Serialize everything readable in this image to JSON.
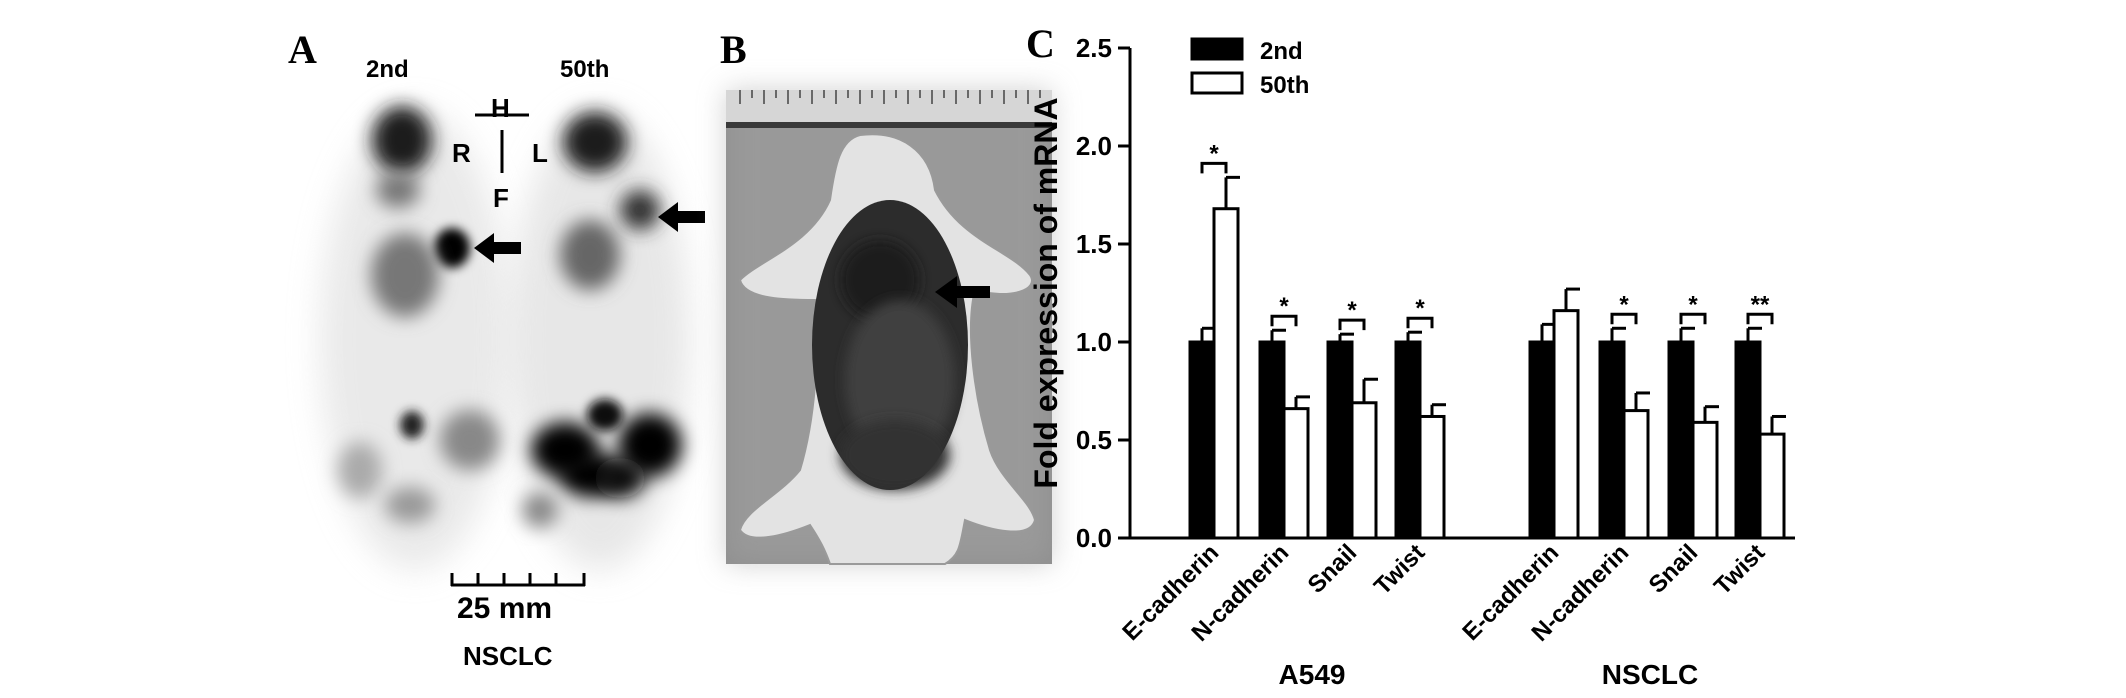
{
  "panels": {
    "a": {
      "letter": "A",
      "label_left": "2nd",
      "label_right": "50th",
      "orientation": {
        "top": "H",
        "left": "R",
        "right": "L",
        "bottom": "F"
      },
      "scale_bar": "25 mm",
      "sample": "NSCLC"
    },
    "b": {
      "letter": "B"
    },
    "c": {
      "letter": "C"
    }
  },
  "chart_data": {
    "type": "bar",
    "title": "",
    "xlabel": "",
    "ylabel": "Fold expression of mRNA",
    "ylim": [
      0,
      2.5
    ],
    "yticks": [
      "0.0",
      "0.5",
      "1.0",
      "1.5",
      "2.0",
      "2.5"
    ],
    "legend_position": "top-left",
    "groups": [
      {
        "name": "A549",
        "categories": [
          "E-cadherin",
          "N-cadherin",
          "Snail",
          "Twist"
        ]
      },
      {
        "name": "NSCLC",
        "categories": [
          "E-cadherin",
          "N-cadherin",
          "Snail",
          "Twist"
        ]
      }
    ],
    "series": [
      {
        "name": "2nd",
        "color": "#000000",
        "values": [
          1.0,
          1.0,
          1.0,
          1.0,
          1.0,
          1.0,
          1.0,
          1.0
        ],
        "errors": [
          0.07,
          0.06,
          0.04,
          0.05,
          0.09,
          0.07,
          0.07,
          0.07
        ]
      },
      {
        "name": "50th",
        "color": "#ffffff",
        "values": [
          1.68,
          0.66,
          0.69,
          0.62,
          1.16,
          0.65,
          0.59,
          0.53
        ],
        "errors": [
          0.16,
          0.06,
          0.12,
          0.06,
          0.11,
          0.09,
          0.08,
          0.09
        ]
      }
    ],
    "significance": [
      "*",
      "*",
      "*",
      "*",
      "",
      "*",
      "*",
      "**"
    ]
  }
}
